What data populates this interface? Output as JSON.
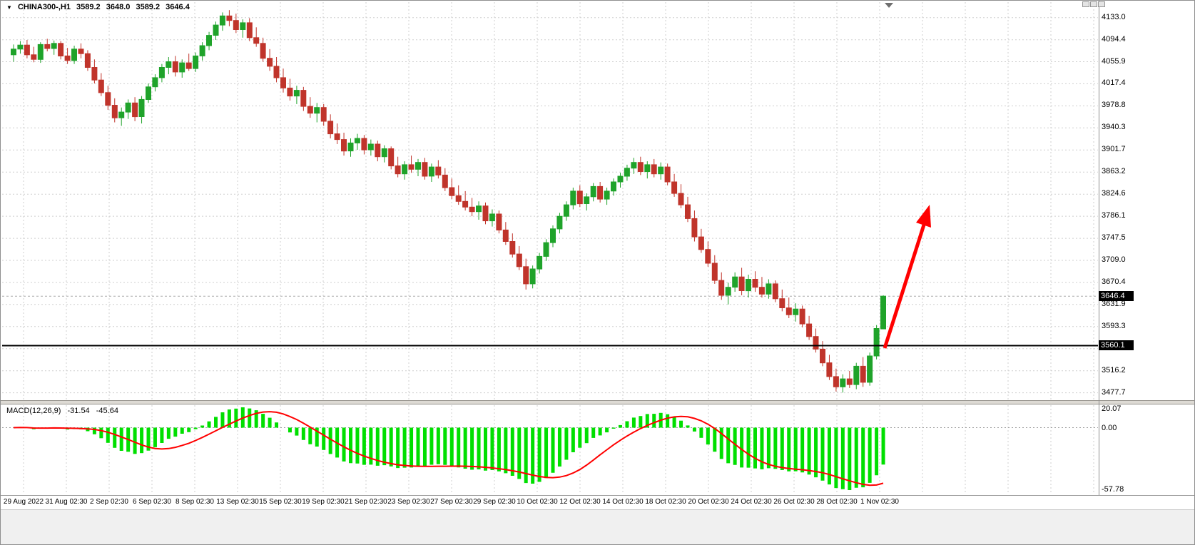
{
  "chart_title": {
    "symbol_period": "CHINA300-,H1",
    "open": "3589.2",
    "high": "3648.0",
    "low": "3589.2",
    "close": "3646.4"
  },
  "icons": {
    "dropdown": "▼"
  },
  "price_scale": {
    "current_badge": "3646.4",
    "line_badge": "3560.1"
  },
  "macd_panel": {
    "label": "MACD(12,26,9)",
    "main_value": "-31.54",
    "signal_value": "-45.64",
    "scale_labels": [
      "20.07",
      "0.00",
      "-57.78"
    ]
  },
  "colors": {
    "up": "#1FA32A",
    "down": "#C0342B",
    "macd_hist": "#00DF00",
    "signal": "#FF0000",
    "hline": "#000000",
    "arrow": "#FF0000",
    "grid": "#CFCFCF",
    "bid_line": "#ABABAB",
    "badge_bg": "#000000",
    "badge_fg": "#FFFFFF",
    "shift_marker": "#6F6F6F"
  },
  "chart_data": [
    {
      "type": "candlestick",
      "title": "CHINA300-,H1",
      "ylim": [
        3466,
        4160
      ],
      "hline": 3560.1,
      "last_close": 3646.4,
      "y_ticks": [
        "4133.0",
        "4094.4",
        "4055.9",
        "4017.4",
        "3978.8",
        "3940.3",
        "3901.7",
        "3863.2",
        "3824.6",
        "3786.1",
        "3747.5",
        "3709.0",
        "3670.4",
        "3631.9",
        "3593.3",
        "3516.2",
        "3477.7"
      ],
      "x_ticks": [
        "29 Aug 2022",
        "31 Aug 02:30",
        "2 Sep 02:30",
        "6 Sep 02:30",
        "8 Sep 02:30",
        "13 Sep 02:30",
        "15 Sep 02:30",
        "19 Sep 02:30",
        "21 Sep 02:30",
        "23 Sep 02:30",
        "27 Sep 02:30",
        "29 Sep 02:30",
        "10 Oct 02:30",
        "12 Oct 02:30",
        "14 Oct 02:30",
        "18 Oct 02:30",
        "20 Oct 02:30",
        "24 Oct 02:30",
        "26 Oct 02:30",
        "28 Oct 02:30",
        "1 Nov 02:30"
      ],
      "annotation": {
        "type": "arrow",
        "direction": "up-right",
        "color": "#FF0000"
      },
      "ohlc": [
        [
          4068,
          4086,
          4056,
          4078
        ],
        [
          4078,
          4092,
          4070,
          4085
        ],
        [
          4085,
          4094,
          4062,
          4068
        ],
        [
          4068,
          4082,
          4055,
          4060
        ],
        [
          4060,
          4090,
          4054,
          4086
        ],
        [
          4086,
          4096,
          4074,
          4079
        ],
        [
          4079,
          4093,
          4068,
          4088
        ],
        [
          4088,
          4092,
          4060,
          4066
        ],
        [
          4066,
          4080,
          4052,
          4058
        ],
        [
          4058,
          4084,
          4052,
          4078
        ],
        [
          4078,
          4088,
          4062,
          4070
        ],
        [
          4070,
          4076,
          4040,
          4046
        ],
        [
          4046,
          4060,
          4018,
          4024
        ],
        [
          4024,
          4036,
          3996,
          4002
        ],
        [
          4002,
          4014,
          3972,
          3980
        ],
        [
          3980,
          3992,
          3950,
          3958
        ],
        [
          3958,
          3976,
          3944,
          3968
        ],
        [
          3968,
          3990,
          3956,
          3984
        ],
        [
          3984,
          3994,
          3952,
          3960
        ],
        [
          3960,
          3996,
          3948,
          3990
        ],
        [
          3990,
          4018,
          3984,
          4012
        ],
        [
          4012,
          4034,
          4004,
          4028
        ],
        [
          4028,
          4052,
          4020,
          4046
        ],
        [
          4046,
          4064,
          4034,
          4056
        ],
        [
          4056,
          4066,
          4030,
          4038
        ],
        [
          4038,
          4060,
          4028,
          4054
        ],
        [
          4054,
          4070,
          4040,
          4044
        ],
        [
          4044,
          4072,
          4038,
          4066
        ],
        [
          4066,
          4090,
          4058,
          4084
        ],
        [
          4084,
          4108,
          4076,
          4102
        ],
        [
          4102,
          4126,
          4094,
          4120
        ],
        [
          4120,
          4142,
          4110,
          4136
        ],
        [
          4136,
          4146,
          4118,
          4128
        ],
        [
          4128,
          4140,
          4106,
          4112
        ],
        [
          4112,
          4130,
          4098,
          4124
        ],
        [
          4124,
          4132,
          4092,
          4098
        ],
        [
          4098,
          4116,
          4082,
          4088
        ],
        [
          4088,
          4098,
          4056,
          4062
        ],
        [
          4062,
          4078,
          4040,
          4048
        ],
        [
          4048,
          4064,
          4020,
          4028
        ],
        [
          4028,
          4044,
          4002,
          4010
        ],
        [
          4010,
          4026,
          3988,
          3996
        ],
        [
          3996,
          4014,
          3982,
          4006
        ],
        [
          4006,
          4012,
          3970,
          3978
        ],
        [
          3978,
          3994,
          3958,
          3966
        ],
        [
          3966,
          3984,
          3950,
          3976
        ],
        [
          3976,
          3982,
          3944,
          3952
        ],
        [
          3952,
          3964,
          3922,
          3930
        ],
        [
          3930,
          3948,
          3912,
          3920
        ],
        [
          3920,
          3932,
          3892,
          3900
        ],
        [
          3900,
          3922,
          3890,
          3914
        ],
        [
          3914,
          3930,
          3902,
          3922
        ],
        [
          3922,
          3928,
          3894,
          3902
        ],
        [
          3902,
          3920,
          3892,
          3912
        ],
        [
          3912,
          3918,
          3882,
          3890
        ],
        [
          3890,
          3910,
          3880,
          3904
        ],
        [
          3904,
          3908,
          3868,
          3874
        ],
        [
          3874,
          3890,
          3854,
          3860
        ],
        [
          3860,
          3882,
          3850,
          3876
        ],
        [
          3876,
          3892,
          3862,
          3868
        ],
        [
          3868,
          3886,
          3856,
          3880
        ],
        [
          3880,
          3888,
          3850,
          3856
        ],
        [
          3856,
          3878,
          3846,
          3872
        ],
        [
          3872,
          3884,
          3852,
          3858
        ],
        [
          3858,
          3870,
          3830,
          3836
        ],
        [
          3836,
          3852,
          3816,
          3822
        ],
        [
          3822,
          3840,
          3806,
          3812
        ],
        [
          3812,
          3830,
          3796,
          3802
        ],
        [
          3802,
          3818,
          3786,
          3794
        ],
        [
          3794,
          3812,
          3780,
          3804
        ],
        [
          3804,
          3810,
          3772,
          3778
        ],
        [
          3778,
          3798,
          3768,
          3790
        ],
        [
          3790,
          3796,
          3756,
          3762
        ],
        [
          3762,
          3776,
          3736,
          3742
        ],
        [
          3742,
          3756,
          3714,
          3720
        ],
        [
          3720,
          3734,
          3692,
          3698
        ],
        [
          3698,
          3712,
          3658,
          3668
        ],
        [
          3668,
          3700,
          3660,
          3694
        ],
        [
          3694,
          3722,
          3686,
          3716
        ],
        [
          3716,
          3746,
          3708,
          3740
        ],
        [
          3740,
          3770,
          3732,
          3764
        ],
        [
          3764,
          3792,
          3756,
          3786
        ],
        [
          3786,
          3812,
          3778,
          3806
        ],
        [
          3806,
          3836,
          3798,
          3830
        ],
        [
          3830,
          3840,
          3802,
          3808
        ],
        [
          3808,
          3826,
          3796,
          3820
        ],
        [
          3820,
          3844,
          3812,
          3838
        ],
        [
          3838,
          3846,
          3810,
          3816
        ],
        [
          3816,
          3836,
          3806,
          3830
        ],
        [
          3830,
          3852,
          3822,
          3846
        ],
        [
          3846,
          3862,
          3836,
          3856
        ],
        [
          3856,
          3876,
          3848,
          3870
        ],
        [
          3870,
          3888,
          3860,
          3880
        ],
        [
          3880,
          3890,
          3858,
          3864
        ],
        [
          3864,
          3882,
          3852,
          3876
        ],
        [
          3876,
          3886,
          3854,
          3860
        ],
        [
          3860,
          3880,
          3850,
          3872
        ],
        [
          3872,
          3878,
          3840,
          3846
        ],
        [
          3846,
          3860,
          3820,
          3826
        ],
        [
          3826,
          3842,
          3800,
          3806
        ],
        [
          3806,
          3820,
          3776,
          3782
        ],
        [
          3782,
          3796,
          3742,
          3750
        ],
        [
          3750,
          3764,
          3722,
          3728
        ],
        [
          3728,
          3742,
          3698,
          3704
        ],
        [
          3704,
          3718,
          3668,
          3674
        ],
        [
          3674,
          3688,
          3640,
          3648
        ],
        [
          3648,
          3670,
          3632,
          3662
        ],
        [
          3662,
          3688,
          3654,
          3680
        ],
        [
          3680,
          3696,
          3648,
          3656
        ],
        [
          3656,
          3684,
          3644,
          3676
        ],
        [
          3676,
          3690,
          3654,
          3662
        ],
        [
          3662,
          3680,
          3644,
          3650
        ],
        [
          3650,
          3676,
          3642,
          3668
        ],
        [
          3668,
          3674,
          3636,
          3642
        ],
        [
          3642,
          3658,
          3620,
          3626
        ],
        [
          3626,
          3644,
          3608,
          3614
        ],
        [
          3614,
          3634,
          3602,
          3624
        ],
        [
          3624,
          3630,
          3592,
          3598
        ],
        [
          3598,
          3612,
          3570,
          3576
        ],
        [
          3576,
          3590,
          3548,
          3554
        ],
        [
          3554,
          3568,
          3524,
          3530
        ],
        [
          3530,
          3544,
          3500,
          3506
        ],
        [
          3506,
          3520,
          3480,
          3488
        ],
        [
          3488,
          3510,
          3478,
          3502
        ],
        [
          3502,
          3516,
          3486,
          3492
        ],
        [
          3492,
          3530,
          3484,
          3524
        ],
        [
          3524,
          3540,
          3488,
          3496
        ],
        [
          3496,
          3548,
          3490,
          3542
        ],
        [
          3542,
          3596,
          3536,
          3590
        ],
        [
          3589.2,
          3648.0,
          3589.2,
          3646.4
        ]
      ]
    },
    {
      "type": "bar",
      "name": "MACD(12,26,9)",
      "params": [
        12,
        26,
        9
      ],
      "current_main": -31.54,
      "current_signal": -45.64,
      "scale": [
        20.07,
        0.0,
        -57.78
      ]
    }
  ]
}
